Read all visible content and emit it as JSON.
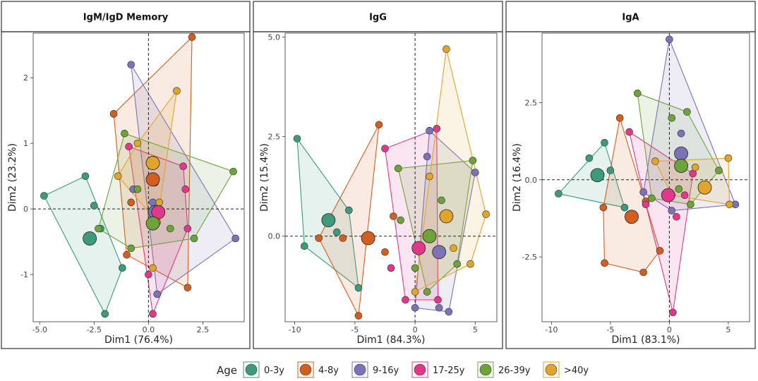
{
  "legend": {
    "title": "Age",
    "entries": [
      {
        "label": "0-3y",
        "color": "#3d9a7c"
      },
      {
        "label": "4-8y",
        "color": "#d35f1f"
      },
      {
        "label": "9-16y",
        "color": "#7b72b8"
      },
      {
        "label": "17-25y",
        "color": "#e0398a"
      },
      {
        "label": "26-39y",
        "color": "#6ea33a"
      },
      {
        "label": ">40y",
        "color": "#e0a52a"
      }
    ]
  },
  "chart_data": [
    {
      "type": "scatter",
      "title": "IgM/IgD Memory",
      "xlabel": "Dim1 (76.4%)",
      "ylabel": "Dim2 (23.2%)",
      "xlim": [
        -5.3,
        4.4
      ],
      "ylim": [
        -1.72,
        2.68
      ],
      "xticks": [
        -5.0,
        -2.5,
        0.0,
        2.5
      ],
      "xtick_labels": [
        "-5.0",
        "-2.5",
        "0.0",
        "2.5"
      ],
      "yticks": [
        -1,
        0,
        1,
        2
      ],
      "ytick_labels": [
        "-1",
        "0",
        "1",
        "2"
      ],
      "series": [
        {
          "name": "0-3y",
          "points": [
            [
              -4.8,
              0.2
            ],
            [
              -2.9,
              0.5
            ],
            [
              -2.5,
              0.05
            ],
            [
              -2.2,
              -0.3
            ],
            [
              -2.0,
              -1.6
            ],
            [
              -1.2,
              -0.9
            ]
          ],
          "hull": [
            [
              -4.8,
              0.2
            ],
            [
              -2.9,
              0.5
            ],
            [
              -1.2,
              -0.9
            ],
            [
              -2.0,
              -1.6
            ]
          ],
          "centroid": [
            -2.7,
            -0.45
          ]
        },
        {
          "name": "4-8y",
          "points": [
            [
              -1.6,
              1.45
            ],
            [
              2.0,
              2.62
            ],
            [
              1.8,
              -1.2
            ],
            [
              -1.0,
              -0.7
            ],
            [
              -0.8,
              0.1
            ]
          ],
          "hull": [
            [
              -1.6,
              1.45
            ],
            [
              2.0,
              2.62
            ],
            [
              1.8,
              -1.2
            ],
            [
              -1.0,
              -0.7
            ]
          ],
          "centroid": [
            0.2,
            0.45
          ]
        },
        {
          "name": "9-16y",
          "points": [
            [
              -0.8,
              2.2
            ],
            [
              4.0,
              -0.45
            ],
            [
              0.4,
              -1.3
            ],
            [
              -0.7,
              0.3
            ],
            [
              0.2,
              0.1
            ]
          ],
          "hull": [
            [
              -0.8,
              2.2
            ],
            [
              4.0,
              -0.45
            ],
            [
              0.4,
              -1.3
            ]
          ],
          "centroid": [
            0.3,
            -0.05
          ]
        },
        {
          "name": "17-25y",
          "points": [
            [
              -0.9,
              0.95
            ],
            [
              1.6,
              0.65
            ],
            [
              1.8,
              -0.3
            ],
            [
              1.7,
              0.3
            ],
            [
              0.2,
              -1.6
            ],
            [
              0.0,
              -1.0
            ],
            [
              0.3,
              0.4
            ]
          ],
          "hull": [
            [
              -0.9,
              0.95
            ],
            [
              1.6,
              0.65
            ],
            [
              1.8,
              -0.3
            ],
            [
              0.2,
              -1.6
            ]
          ],
          "centroid": [
            0.45,
            -0.05
          ]
        },
        {
          "name": "26-39y",
          "points": [
            [
              -1.1,
              1.15
            ],
            [
              3.9,
              0.57
            ],
            [
              2.1,
              -0.45
            ],
            [
              -0.8,
              -0.6
            ],
            [
              -2.3,
              -0.3
            ],
            [
              -0.5,
              0.3
            ],
            [
              1.0,
              -0.3
            ]
          ],
          "hull": [
            [
              -1.1,
              1.15
            ],
            [
              3.9,
              0.57
            ],
            [
              2.1,
              -0.45
            ],
            [
              -0.8,
              -0.6
            ],
            [
              -2.3,
              -0.3
            ]
          ],
          "centroid": [
            0.2,
            -0.22
          ]
        },
        {
          "name": ">40y",
          "points": [
            [
              -0.5,
              1.0
            ],
            [
              1.3,
              1.8
            ],
            [
              0.4,
              -0.2
            ],
            [
              -1.4,
              0.5
            ],
            [
              0.2,
              -0.9
            ],
            [
              0.5,
              0.1
            ]
          ],
          "hull": [
            [
              -0.5,
              1.0
            ],
            [
              1.3,
              1.8
            ],
            [
              0.4,
              -0.2
            ],
            [
              -1.4,
              0.5
            ]
          ],
          "centroid": [
            0.2,
            0.7
          ]
        }
      ]
    },
    {
      "type": "scatter",
      "title": "IgG",
      "xlabel": "Dim1 (84.3%)",
      "ylabel": "Dim2 (15.4%)",
      "xlim": [
        -10.8,
        6.8
      ],
      "ylim": [
        -2.15,
        5.1
      ],
      "xticks": [
        -10,
        -5,
        0,
        5
      ],
      "xtick_labels": [
        "-10",
        "-5",
        "0",
        "5"
      ],
      "yticks": [
        0.0,
        2.5,
        5.0
      ],
      "ytick_labels": [
        "0.0",
        "2.5",
        "5.0"
      ],
      "series": [
        {
          "name": "0-3y",
          "points": [
            [
              -9.8,
              2.45
            ],
            [
              -5.5,
              0.65
            ],
            [
              -4.7,
              -1.3
            ],
            [
              -9.2,
              -0.25
            ],
            [
              -6.5,
              0.1
            ]
          ],
          "hull": [
            [
              -9.8,
              2.45
            ],
            [
              -5.5,
              0.65
            ],
            [
              -4.7,
              -1.3
            ],
            [
              -9.2,
              -0.25
            ]
          ],
          "centroid": [
            -7.2,
            0.4
          ]
        },
        {
          "name": "4-8y",
          "points": [
            [
              -3.0,
              2.8
            ],
            [
              -4.7,
              -2.0
            ],
            [
              -8.0,
              -0.05
            ],
            [
              -6.0,
              -0.05
            ],
            [
              -2.5,
              -0.4
            ],
            [
              -1.8,
              0.5
            ]
          ],
          "hull": [
            [
              -3.0,
              2.8
            ],
            [
              -4.7,
              -2.0
            ],
            [
              -8.0,
              -0.05
            ]
          ],
          "centroid": [
            -3.9,
            -0.05
          ]
        },
        {
          "name": "9-16y",
          "points": [
            [
              1.2,
              2.65
            ],
            [
              5.0,
              1.6
            ],
            [
              2.8,
              -1.9
            ],
            [
              0.0,
              -1.8
            ],
            [
              1.0,
              2.0
            ],
            [
              2.0,
              -1.8
            ]
          ],
          "hull": [
            [
              1.2,
              2.65
            ],
            [
              5.0,
              1.6
            ],
            [
              2.8,
              -1.9
            ],
            [
              0.0,
              -1.8
            ]
          ],
          "centroid": [
            2.0,
            -0.4
          ]
        },
        {
          "name": "17-25y",
          "points": [
            [
              -2.5,
              2.2
            ],
            [
              1.8,
              2.7
            ],
            [
              1.9,
              -1.6
            ],
            [
              -0.8,
              -1.6
            ],
            [
              -2.0,
              -0.8
            ],
            [
              0.5,
              -0.3
            ]
          ],
          "hull": [
            [
              -2.5,
              2.2
            ],
            [
              1.8,
              2.7
            ],
            [
              1.9,
              -1.6
            ],
            [
              -0.8,
              -1.6
            ]
          ],
          "centroid": [
            0.3,
            -0.3
          ]
        },
        {
          "name": "26-39y",
          "points": [
            [
              -1.4,
              1.7
            ],
            [
              4.8,
              1.9
            ],
            [
              3.5,
              -0.7
            ],
            [
              1.0,
              -1.4
            ],
            [
              -1.2,
              0.4
            ],
            [
              2.2,
              0.9
            ],
            [
              0.0,
              -0.8
            ]
          ],
          "hull": [
            [
              -1.4,
              1.7
            ],
            [
              4.8,
              1.9
            ],
            [
              3.5,
              -0.7
            ],
            [
              1.0,
              -1.4
            ]
          ],
          "centroid": [
            1.2,
            0.0
          ]
        },
        {
          "name": ">40y",
          "points": [
            [
              2.6,
              4.7
            ],
            [
              5.9,
              0.55
            ],
            [
              4.6,
              -0.7
            ],
            [
              0.0,
              -1.4
            ],
            [
              1.2,
              1.5
            ],
            [
              3.2,
              -0.3
            ]
          ],
          "hull": [
            [
              2.6,
              4.7
            ],
            [
              5.9,
              0.55
            ],
            [
              4.6,
              -0.7
            ],
            [
              0.0,
              -1.4
            ]
          ],
          "centroid": [
            2.6,
            0.5
          ]
        }
      ]
    },
    {
      "type": "scatter",
      "title": "IgA",
      "xlabel": "Dim1 (83.1%)",
      "ylabel": "Dim2 (16.4%)",
      "xlim": [
        -10.8,
        6.8
      ],
      "ylim": [
        -4.6,
        4.75
      ],
      "xticks": [
        -10,
        -5,
        0,
        5
      ],
      "xtick_labels": [
        "-10",
        "-5",
        "0",
        "5"
      ],
      "yticks": [
        -2.5,
        0.0,
        2.5
      ],
      "ytick_labels": [
        "-2.5",
        "0.0",
        "2.5"
      ],
      "series": [
        {
          "name": "0-3y",
          "points": [
            [
              -9.4,
              -0.45
            ],
            [
              -5.5,
              1.2
            ],
            [
              -3.8,
              -0.9
            ],
            [
              -6.8,
              0.7
            ],
            [
              -5.0,
              0.3
            ]
          ],
          "hull": [
            [
              -9.4,
              -0.45
            ],
            [
              -5.5,
              1.2
            ],
            [
              -3.8,
              -0.9
            ]
          ],
          "centroid": [
            -6.1,
            0.15
          ]
        },
        {
          "name": "4-8y",
          "points": [
            [
              -4.2,
              2.0
            ],
            [
              -5.5,
              -2.7
            ],
            [
              -2.2,
              -3.0
            ],
            [
              -0.8,
              -2.3
            ],
            [
              -5.6,
              -0.9
            ],
            [
              -2.0,
              -0.7
            ]
          ],
          "hull": [
            [
              -4.2,
              2.0
            ],
            [
              -0.8,
              -2.3
            ],
            [
              -2.2,
              -3.0
            ],
            [
              -5.5,
              -2.7
            ],
            [
              -5.6,
              -0.9
            ]
          ],
          "centroid": [
            -3.2,
            -1.2
          ]
        },
        {
          "name": "9-16y",
          "points": [
            [
              0.0,
              4.55
            ],
            [
              5.6,
              -0.8
            ],
            [
              0.2,
              -1.0
            ],
            [
              -2.2,
              -0.4
            ],
            [
              1.0,
              1.5
            ],
            [
              1.0,
              0.85
            ]
          ],
          "hull": [
            [
              0.0,
              4.55
            ],
            [
              5.6,
              -0.8
            ],
            [
              0.2,
              -1.0
            ],
            [
              -2.2,
              -0.4
            ]
          ],
          "centroid": [
            1.0,
            0.85
          ]
        },
        {
          "name": "17-25y",
          "points": [
            [
              -3.4,
              1.55
            ],
            [
              2.0,
              0.2
            ],
            [
              0.3,
              -4.3
            ],
            [
              -2.0,
              -0.8
            ],
            [
              1.3,
              -0.5
            ],
            [
              0.6,
              -1.2
            ]
          ],
          "hull": [
            [
              -3.4,
              1.55
            ],
            [
              2.0,
              0.2
            ],
            [
              0.3,
              -4.3
            ],
            [
              -2.0,
              -0.8
            ]
          ],
          "centroid": [
            -0.1,
            -0.5
          ]
        },
        {
          "name": "26-39y",
          "points": [
            [
              -2.7,
              2.8
            ],
            [
              1.5,
              2.2
            ],
            [
              4.2,
              0.3
            ],
            [
              1.8,
              -0.8
            ],
            [
              -1.5,
              -0.6
            ],
            [
              0.2,
              2.0
            ],
            [
              0.8,
              -0.3
            ]
          ],
          "hull": [
            [
              -2.7,
              2.8
            ],
            [
              1.5,
              2.2
            ],
            [
              4.2,
              0.3
            ],
            [
              1.8,
              -0.8
            ],
            [
              -1.5,
              -0.6
            ]
          ],
          "centroid": [
            1.0,
            0.45
          ]
        },
        {
          "name": ">40y",
          "points": [
            [
              5.0,
              0.7
            ],
            [
              5.1,
              -0.8
            ],
            [
              0.2,
              -0.5
            ],
            [
              -1.2,
              0.6
            ],
            [
              2.2,
              0.4
            ]
          ],
          "hull": [
            [
              5.0,
              0.7
            ],
            [
              5.1,
              -0.8
            ],
            [
              0.2,
              -0.5
            ],
            [
              -1.2,
              0.6
            ]
          ],
          "centroid": [
            3.0,
            -0.25
          ]
        }
      ]
    }
  ]
}
